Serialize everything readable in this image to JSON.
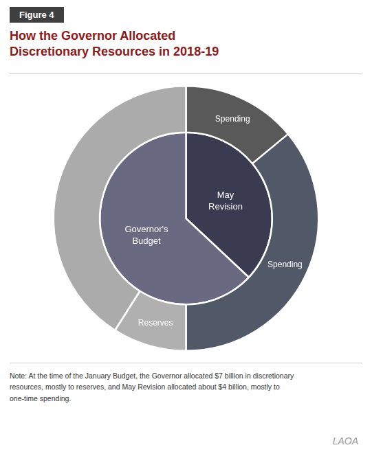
{
  "chart_data": {
    "type": "doughnut",
    "figure_label": "Figure 4",
    "figure_label_color": "#FFFFFF",
    "figure_label_bg": "#404040",
    "title": "How the Governor Allocated\nDiscretionary Resources in 2018-19",
    "title_color": "#8B1A1A",
    "note": "Note: At the time of the January Budget, the Governor allocated $7 billion in discretionary\nresources, mostly to reserves, and May Revision allocated about $4 billion, mostly to\none-time spending.",
    "annotations": [
      "LAOA"
    ],
    "series": [
      {
        "categories": [
          "Spending",
          "Spending",
          "Reserves",
          null
        ],
        "values": [
          14,
          36,
          9,
          41
        ],
        "colors": [
          "#595959",
          "#515968",
          "#B0B0B0",
          "#ABABAB"
        ]
      },
      {
        "categories": [
          "May\nRevision",
          "Governor's\nBudget"
        ],
        "values": [
          37,
          63
        ],
        "colors": [
          "#3A3A50",
          "#696982"
        ]
      }
    ]
  }
}
